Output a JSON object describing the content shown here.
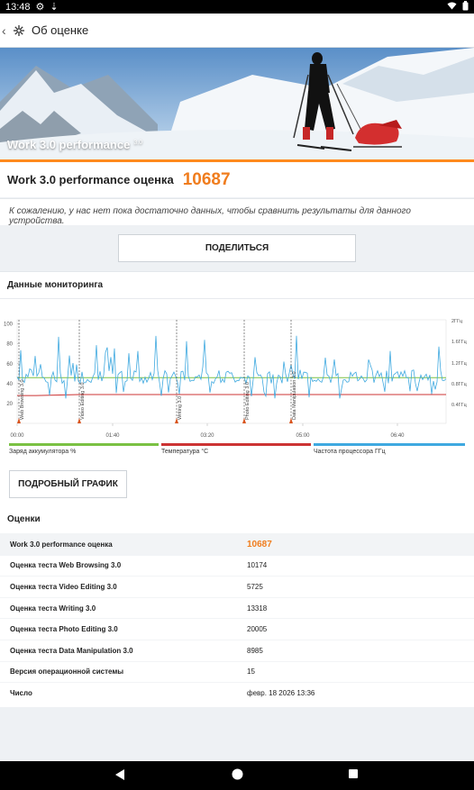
{
  "status": {
    "time": "13:48"
  },
  "appbar": {
    "title": "Об оценке"
  },
  "banner": {
    "title": "Work 3.0 performance",
    "version": "3.0"
  },
  "score": {
    "label": "Work 3.0 performance оценка",
    "value": "10687"
  },
  "notice": "К сожалению, у нас нет пока достаточно данных, чтобы сравнить результаты для данного устройства.",
  "share_label": "ПОДЕЛИТЬСЯ",
  "monitoring": {
    "title": "Данные мониторинга",
    "detail_label": "ПОДРОБНЫЙ ГРАФИК",
    "legend": [
      {
        "label": "Заряд аккумулятора %",
        "color": "#7ac143"
      },
      {
        "label": "Температура °C",
        "color": "#cc3333"
      },
      {
        "label": "Частота процессора ГГц",
        "color": "#3fa9e0"
      }
    ]
  },
  "chart_data": {
    "type": "line",
    "x_ticks": [
      "00:00",
      "01:40",
      "03:20",
      "05:00",
      "06:40"
    ],
    "y_left_ticks": [
      "100",
      "80",
      "60",
      "40",
      "20"
    ],
    "y_right_ticks": [
      "2ГГц",
      "1.6ГГц",
      "1.2ГГц",
      "0.8ГГц",
      "0.4ГГц"
    ],
    "markers": [
      "Web Browsing 3.0",
      "Video Editing 3.0",
      "Writing 3.0",
      "Photo Editing 3.0",
      "Data Manipulation 3.0"
    ],
    "series": [
      {
        "name": "Заряд аккумулятора %",
        "values": [
          46,
          46,
          46,
          46
        ]
      },
      {
        "name": "Температура °C",
        "values": [
          28,
          29,
          29,
          29
        ]
      }
    ]
  },
  "scores": {
    "title": "Оценки",
    "rows": [
      {
        "name": "Work 3.0 performance оценка",
        "value": "10687"
      },
      {
        "name": "Оценка теста Web Browsing 3.0",
        "value": "10174"
      },
      {
        "name": "Оценка теста Video Editing 3.0",
        "value": "5725"
      },
      {
        "name": "Оценка теста Writing 3.0",
        "value": "13318"
      },
      {
        "name": "Оценка теста Photo Editing 3.0",
        "value": "20005"
      },
      {
        "name": "Оценка теста Data Manipulation 3.0",
        "value": "8985"
      },
      {
        "name": "Версия операционной системы",
        "value": "15"
      },
      {
        "name": "Число",
        "value": "февр. 18 2026 13:36"
      }
    ]
  }
}
